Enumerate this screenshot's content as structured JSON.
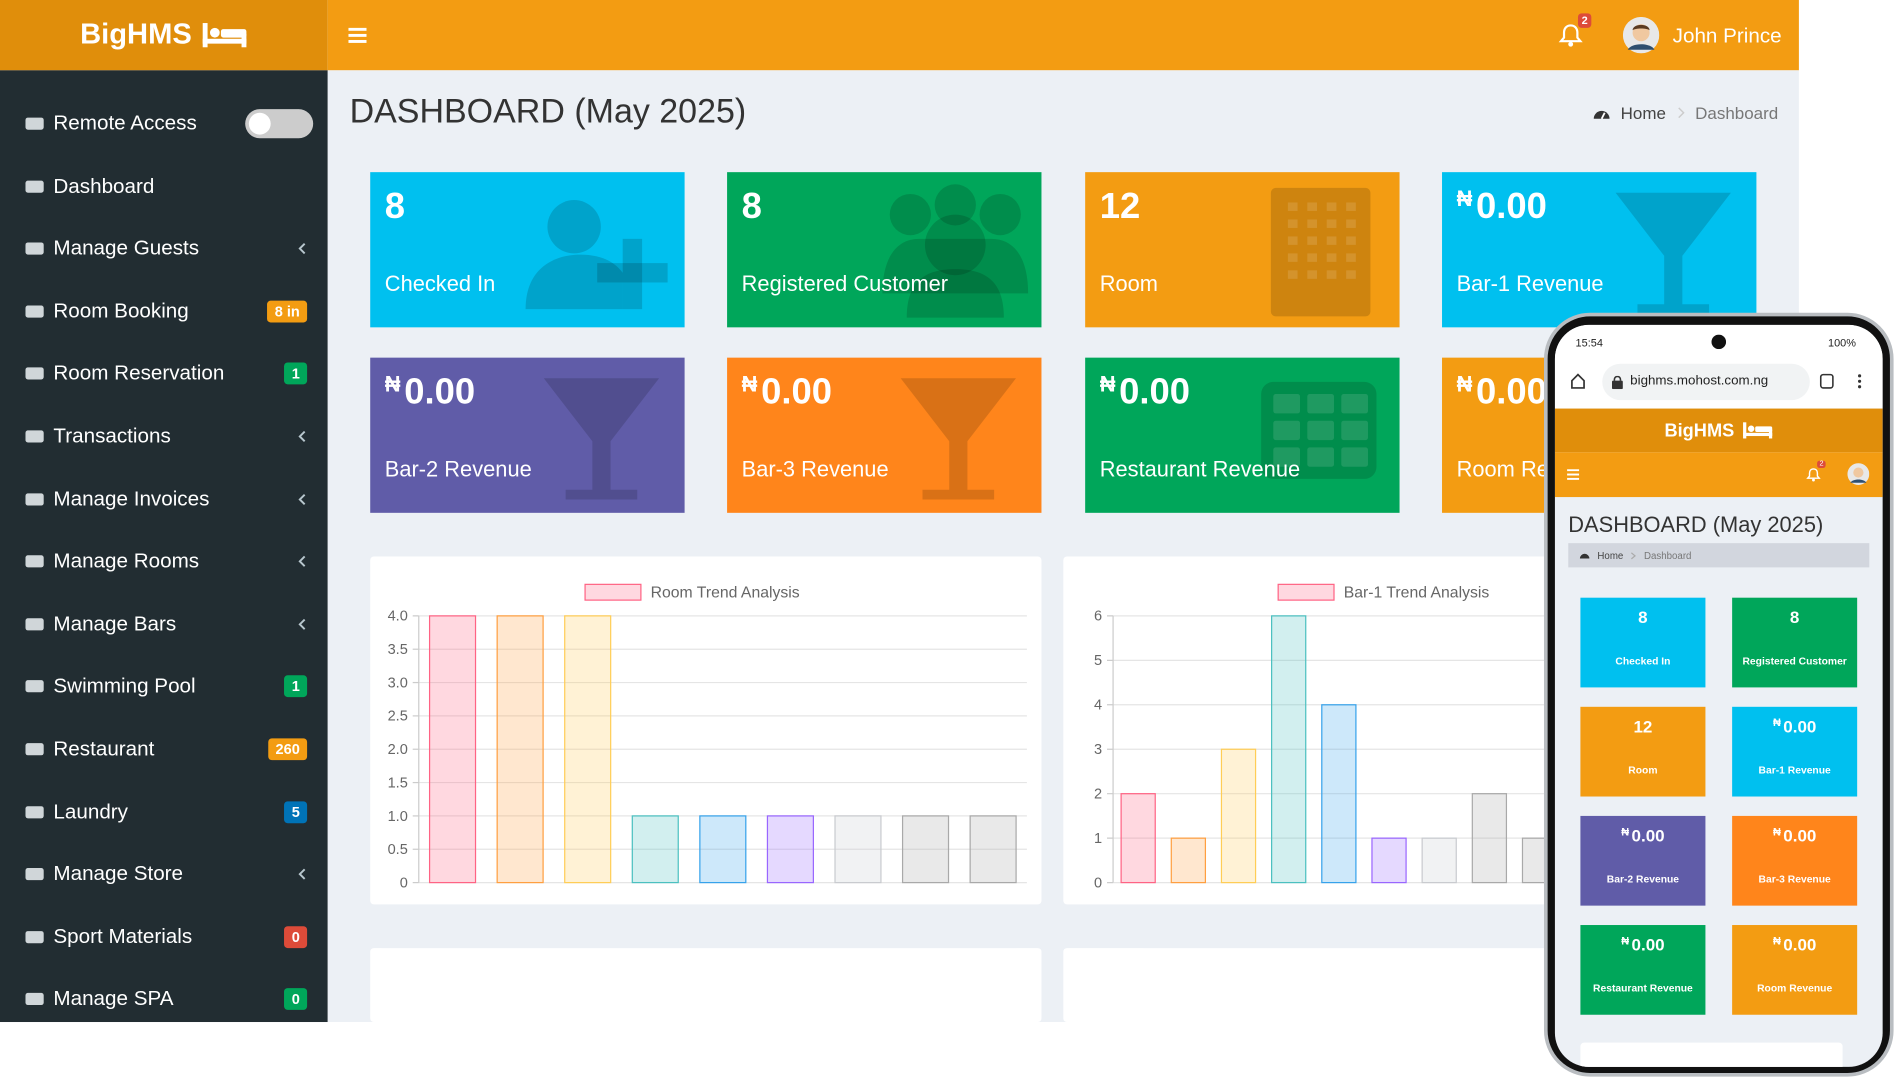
{
  "header": {
    "brand": "BigHMS",
    "notification_count": "2",
    "user": "John Prince"
  },
  "sidebar": {
    "items": [
      {
        "label": "Remote Access",
        "switch": false
      },
      {
        "label": "Dashboard"
      },
      {
        "label": "Manage Guests",
        "submenu": true
      },
      {
        "label": "Room Booking",
        "badge": "8 in",
        "badge_color": "#f39c12"
      },
      {
        "label": "Room Reservation",
        "badge": "1",
        "badge_color": "#00a65a"
      },
      {
        "label": "Transactions",
        "submenu": true
      },
      {
        "label": "Manage Invoices",
        "submenu": true
      },
      {
        "label": "Manage Rooms",
        "submenu": true
      },
      {
        "label": "Manage Bars",
        "submenu": true
      },
      {
        "label": "Swimming Pool",
        "badge": "1",
        "badge_color": "#00a65a"
      },
      {
        "label": "Restaurant",
        "badge": "260",
        "badge_color": "#f39c12"
      },
      {
        "label": "Laundry",
        "badge": "5",
        "badge_color": "#0073b7"
      },
      {
        "label": "Manage Store",
        "submenu": true
      },
      {
        "label": "Sport Materials",
        "badge": "0",
        "badge_color": "#dd4b39"
      },
      {
        "label": "Manage SPA",
        "badge": "0",
        "badge_color": "#00a65a"
      }
    ]
  },
  "page": {
    "title": "DASHBOARD (May 2025)",
    "breadcrumb": [
      "Home",
      "Dashboard"
    ]
  },
  "cards": [
    {
      "value": "8",
      "label": "Checked In",
      "color": "#00c0ef"
    },
    {
      "value": "8",
      "label": "Registered Customer",
      "color": "#00a65a"
    },
    {
      "value": "12",
      "label": "Room",
      "color": "#f39c12"
    },
    {
      "currency": "₦",
      "value": "0.00",
      "label": "Bar-1 Revenue",
      "color": "#00c0ef"
    },
    {
      "currency": "₦",
      "value": "0.00",
      "label": "Bar-2 Revenue",
      "color": "#605ca8"
    },
    {
      "currency": "₦",
      "value": "0.00",
      "label": "Bar-3 Revenue",
      "color": "#ff851b"
    },
    {
      "currency": "₦",
      "value": "0.00",
      "label": "Restaurant Revenue",
      "color": "#00a65a"
    },
    {
      "currency": "₦",
      "value": "0.00",
      "label": "Room Revenue",
      "color": "#f39c12"
    }
  ],
  "chart_data": [
    {
      "type": "bar",
      "categories": [
        null,
        null,
        null,
        null,
        null,
        null,
        null,
        null,
        null
      ],
      "series": [
        {
          "name": "Room Trend Analysis",
          "colors": [
            "#ff6384",
            "#ff9f40",
            "#ffcd56",
            "#4bc0c0",
            "#36a2eb",
            "#9966ff",
            "#c9cbcf",
            "#a9a9a9",
            "#a9a9a9"
          ],
          "values": [
            4,
            4,
            4,
            1,
            1,
            1,
            1,
            1,
            1
          ]
        }
      ],
      "ylim": [
        0,
        4
      ],
      "yticks": [
        0,
        0.5,
        {
          "value": 1,
          "label": "1.0"
        },
        1.5,
        {
          "value": 2,
          "label": "2.0"
        },
        2.5,
        {
          "value": 3,
          "label": "3.0"
        },
        3.5,
        {
          "value": 4,
          "label": "4.0"
        }
      ],
      "grid": true
    },
    {
      "type": "bar",
      "categories": [
        null,
        null,
        null,
        null,
        null,
        null,
        null,
        null,
        null
      ],
      "series": [
        {
          "name": "Bar-1 Trend Analysis",
          "colors": [
            "#ff6384",
            "#ff9f40",
            "#ffcd56",
            "#4bc0c0",
            "#36a2eb",
            "#9966ff",
            "#c9cbcf",
            "#a9a9a9",
            "#a9a9a9"
          ],
          "values": [
            2,
            1,
            3,
            6,
            4,
            1,
            1,
            2,
            1
          ]
        }
      ],
      "ylim": [
        0,
        6
      ],
      "yticks": [
        0,
        1,
        2,
        3,
        4,
        5,
        6
      ],
      "grid": true
    }
  ],
  "phone": {
    "time": "15:54",
    "battery": "100%",
    "url": "bighms.mohost.com.ng"
  }
}
